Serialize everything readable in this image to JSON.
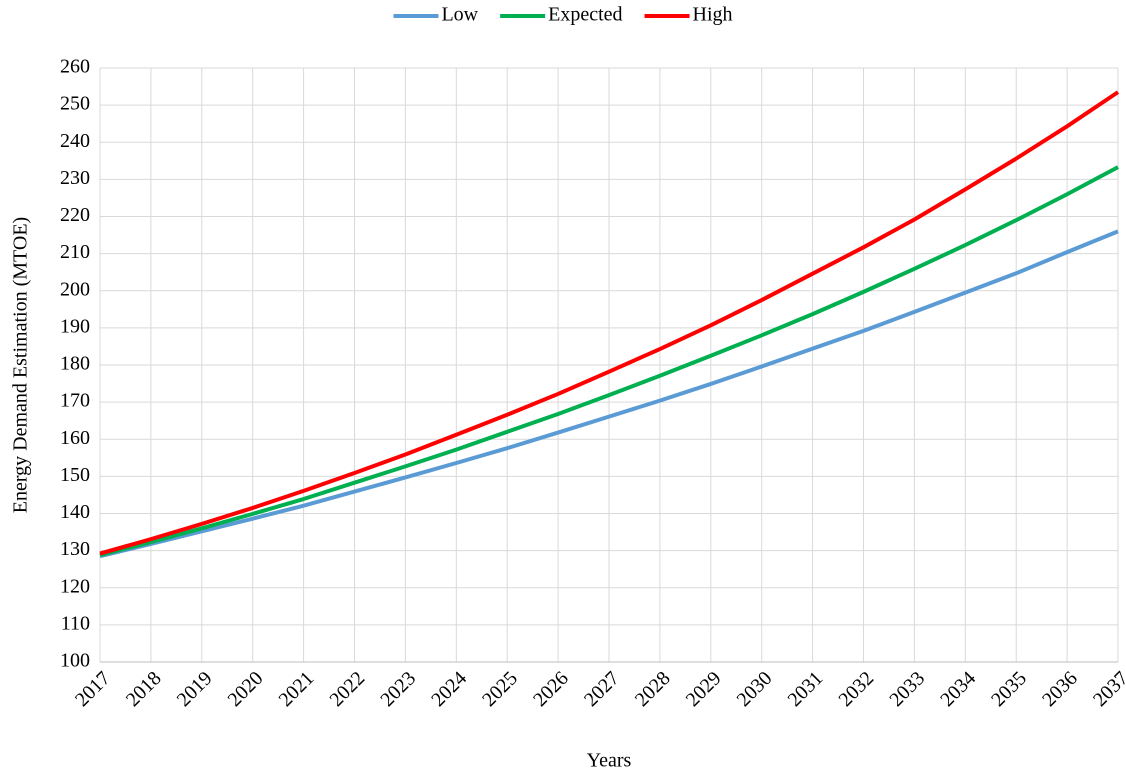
{
  "chart_data": {
    "type": "line",
    "x_label": "Years",
    "y_label": "Energy Demand Estimation (MTOE)",
    "x": [
      2017,
      2018,
      2019,
      2020,
      2021,
      2022,
      2023,
      2024,
      2025,
      2026,
      2027,
      2028,
      2029,
      2030,
      2031,
      2032,
      2033,
      2034,
      2035,
      2036,
      2037
    ],
    "series": [
      {
        "name": "Low",
        "color": "#5b9bd5",
        "values": [
          128.5,
          131.8,
          135.2,
          138.6,
          142.1,
          145.9,
          149.7,
          153.6,
          157.6,
          161.8,
          166.1,
          170.4,
          174.9,
          179.6,
          184.4,
          189.2,
          194.3,
          199.5,
          204.7,
          210.4,
          216
        ]
      },
      {
        "name": "Expected",
        "color": "#00b050",
        "values": [
          128.8,
          132.3,
          136.0,
          139.9,
          143.9,
          148.3,
          152.7,
          157.2,
          162.0,
          166.8,
          171.9,
          177.1,
          182.5,
          188.0,
          193.7,
          199.7,
          205.9,
          212.3,
          219.0,
          226.0,
          233.3
        ]
      },
      {
        "name": "High",
        "color": "#ff0000",
        "values": [
          129.2,
          133.1,
          137.2,
          141.5,
          146.1,
          150.9,
          155.9,
          161.2,
          166.6,
          172.2,
          178.2,
          184.3,
          190.7,
          197.5,
          204.6,
          211.7,
          219.2,
          227.3,
          235.6,
          244.3,
          253.5
        ]
      }
    ],
    "xlim": [
      2017,
      2037
    ],
    "xticks": [
      2017,
      2018,
      2019,
      2020,
      2021,
      2022,
      2023,
      2024,
      2025,
      2026,
      2027,
      2028,
      2029,
      2030,
      2031,
      2032,
      2033,
      2034,
      2035,
      2036,
      2037
    ],
    "ylim": [
      100,
      260
    ],
    "yticks": [
      100,
      110,
      120,
      130,
      140,
      150,
      160,
      170,
      180,
      190,
      200,
      210,
      220,
      230,
      240,
      250,
      260
    ],
    "grid": true,
    "legend": "top"
  }
}
